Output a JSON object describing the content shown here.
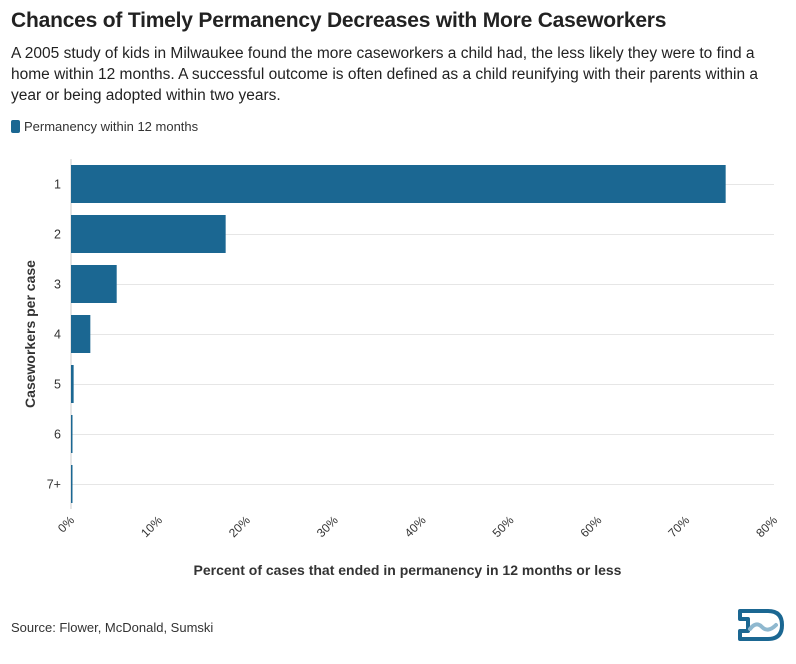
{
  "title": "Chances of Timely Permanency Decreases with More Caseworkers",
  "subtitle": "A 2005 study of kids in Milwaukee found the more caseworkers a child had, the less likely they were to find a home within 12 months. A successful outcome is often defined as a child reunifying with their parents within a year or being adopted within two years.",
  "source": "Source: Flower, McDonald, Sumski",
  "colors": {
    "bar": "#1b6792",
    "grid": "#e6e6e6",
    "axis": "#cccccc",
    "logo": "#1b6792"
  },
  "chart_data": {
    "type": "bar",
    "orientation": "horizontal",
    "title": "",
    "categories": [
      "1",
      "2",
      "3",
      "4",
      "5",
      "6",
      "7+"
    ],
    "series": [
      {
        "name": "Permanency within 12 months",
        "values": [
          74.5,
          17.6,
          5.2,
          2.2,
          0.3,
          0.1,
          0.1
        ]
      }
    ],
    "xlabel": "Percent of cases that ended in permanency in 12 months or less",
    "ylabel": "Caseworkers per case",
    "xlim": [
      0,
      80
    ],
    "xticks": [
      0,
      10,
      20,
      30,
      40,
      50,
      60,
      70,
      80
    ],
    "xtick_labels": [
      "0%",
      "10%",
      "20%",
      "30%",
      "40%",
      "50%",
      "60%",
      "70%",
      "80%"
    ],
    "grid": true,
    "legend_position": "top-left"
  }
}
